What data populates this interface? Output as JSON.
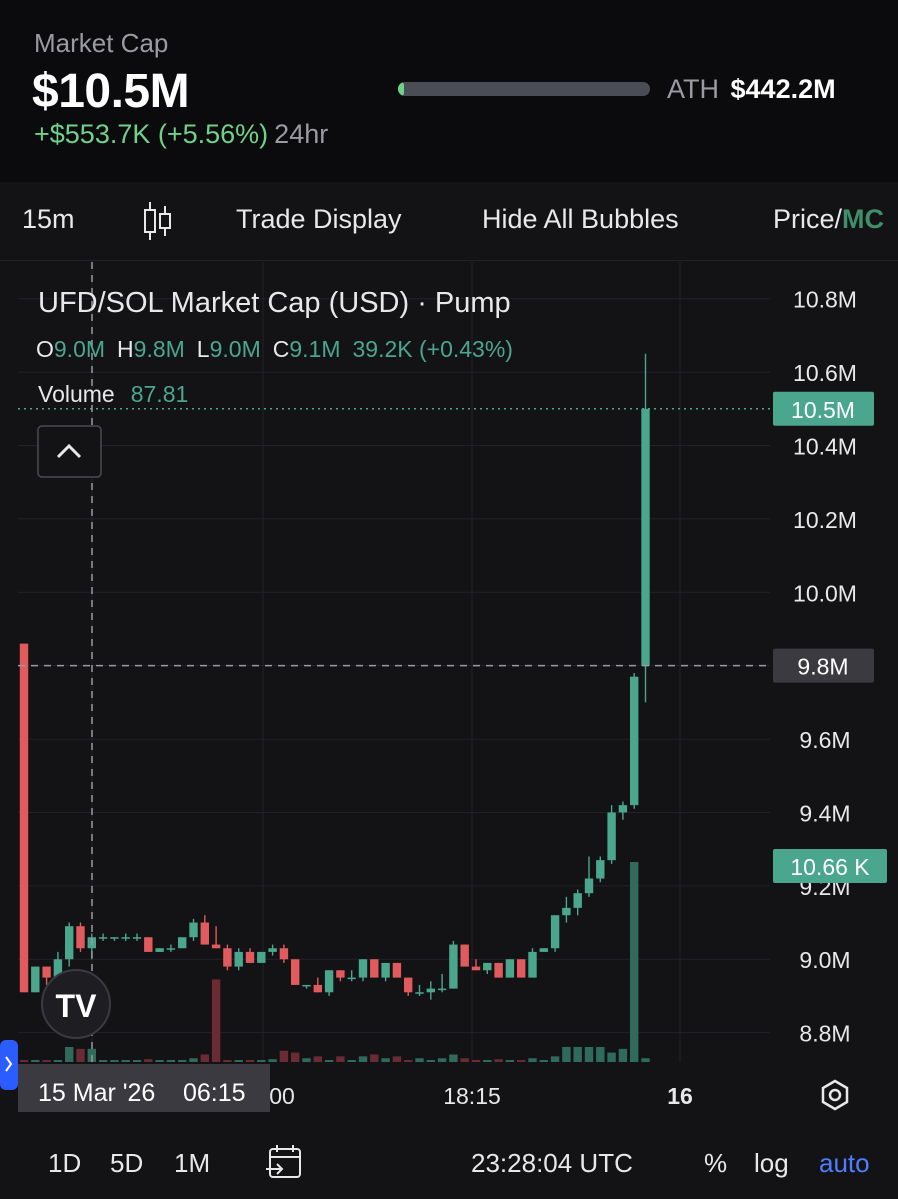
{
  "header": {
    "market_cap_label": "Market Cap",
    "market_cap_value": "$10.5M",
    "change_value": "+$553.7K (+5.56%)",
    "change_period": "24hr",
    "ath_label": "ATH",
    "ath_value": "$442.2M",
    "ath_progress": 0.024
  },
  "toolbar": {
    "interval": "15m",
    "candle_icon": "candlestick-icon",
    "trade_display": "Trade Display",
    "hide_bubbles": "Hide All Bubbles",
    "price_label": "Price/",
    "mc_label": "MC"
  },
  "legend": {
    "title": "UFD/SOL Market Cap (USD) · Pump",
    "o_label": "O",
    "o_value": "9.0M",
    "h_label": "H",
    "h_value": "9.8M",
    "l_label": "L",
    "l_value": "9.0M",
    "c_label": "C",
    "c_value": "9.1M",
    "change": "39.2K (+0.43%)",
    "volume_label": "Volume",
    "volume_value": "87.81"
  },
  "chart_data": {
    "type": "candlestick",
    "ylim": [
      8.72,
      10.9
    ],
    "y_ticks": [
      "10.8M",
      "10.6M",
      "10.4M",
      "10.2M",
      "10.0M",
      "9.8M",
      "9.6M",
      "9.4M",
      "9.2M",
      "9.0M",
      "8.8M"
    ],
    "y_tick_values": [
      10.8,
      10.6,
      10.4,
      10.2,
      10.0,
      9.8,
      9.6,
      9.4,
      9.2,
      9.0,
      8.8
    ],
    "x_ticks": [
      "00",
      "18:15",
      "16"
    ],
    "last_price_label": "10.5M",
    "last_price_value": 10.5,
    "crosshair_label": "9.8M",
    "crosshair_value": 9.8,
    "volume_badge": "10.66 K",
    "crosshair_date": "15 Mar '26",
    "crosshair_time": "06:15",
    "colors": {
      "up": "#4aa68c",
      "down": "#e05a5e",
      "up_vol": "#2f6b5b",
      "down_vol": "#6b2b33"
    },
    "candles": [
      {
        "o": 9.86,
        "h": 9.86,
        "l": 8.91,
        "c": 8.91,
        "v": 0.1
      },
      {
        "o": 8.91,
        "h": 8.98,
        "l": 8.91,
        "c": 8.98,
        "v": 0.1
      },
      {
        "o": 8.98,
        "h": 8.98,
        "l": 8.93,
        "c": 8.95,
        "v": 0.1
      },
      {
        "o": 8.95,
        "h": 9.02,
        "l": 8.92,
        "c": 9.0,
        "v": 0.1
      },
      {
        "o": 9.0,
        "h": 9.1,
        "l": 8.98,
        "c": 9.09,
        "v": 0.8
      },
      {
        "o": 9.09,
        "h": 9.1,
        "l": 9.02,
        "c": 9.03,
        "v": 0.7
      },
      {
        "o": 9.03,
        "h": 9.07,
        "l": 9.0,
        "c": 9.06,
        "v": 0.7
      },
      {
        "o": 9.06,
        "h": 9.07,
        "l": 9.05,
        "c": 9.06,
        "v": 0.1
      },
      {
        "o": 9.06,
        "h": 9.06,
        "l": 9.05,
        "c": 9.06,
        "v": 0.1
      },
      {
        "o": 9.06,
        "h": 9.07,
        "l": 9.05,
        "c": 9.06,
        "v": 0.1
      },
      {
        "o": 9.06,
        "h": 9.07,
        "l": 9.05,
        "c": 9.06,
        "v": 0.1
      },
      {
        "o": 9.06,
        "h": 9.06,
        "l": 9.02,
        "c": 9.02,
        "v": 0.15
      },
      {
        "o": 9.02,
        "h": 9.03,
        "l": 9.02,
        "c": 9.03,
        "v": 0.1
      },
      {
        "o": 9.03,
        "h": 9.04,
        "l": 9.02,
        "c": 9.03,
        "v": 0.1
      },
      {
        "o": 9.03,
        "h": 9.06,
        "l": 9.03,
        "c": 9.06,
        "v": 0.1
      },
      {
        "o": 9.06,
        "h": 9.11,
        "l": 9.05,
        "c": 9.1,
        "v": 0.2
      },
      {
        "o": 9.1,
        "h": 9.12,
        "l": 9.04,
        "c": 9.04,
        "v": 0.4
      },
      {
        "o": 9.04,
        "h": 9.09,
        "l": 9.03,
        "c": 9.03,
        "v": 4.4
      },
      {
        "o": 9.03,
        "h": 9.04,
        "l": 8.97,
        "c": 8.98,
        "v": 0.1
      },
      {
        "o": 8.98,
        "h": 9.03,
        "l": 8.97,
        "c": 9.02,
        "v": 0.1
      },
      {
        "o": 9.02,
        "h": 9.03,
        "l": 8.99,
        "c": 8.99,
        "v": 0.1
      },
      {
        "o": 8.99,
        "h": 9.02,
        "l": 8.99,
        "c": 9.02,
        "v": 0.1
      },
      {
        "o": 9.02,
        "h": 9.04,
        "l": 9.01,
        "c": 9.03,
        "v": 0.15
      },
      {
        "o": 9.03,
        "h": 9.04,
        "l": 8.99,
        "c": 9.0,
        "v": 0.6
      },
      {
        "o": 9.0,
        "h": 9.0,
        "l": 8.93,
        "c": 8.93,
        "v": 0.5
      },
      {
        "o": 8.93,
        "h": 8.93,
        "l": 8.92,
        "c": 8.93,
        "v": 0.2
      },
      {
        "o": 8.93,
        "h": 8.95,
        "l": 8.91,
        "c": 8.91,
        "v": 0.3
      },
      {
        "o": 8.91,
        "h": 8.97,
        "l": 8.9,
        "c": 8.97,
        "v": 0.1
      },
      {
        "o": 8.97,
        "h": 8.97,
        "l": 8.94,
        "c": 8.95,
        "v": 0.3
      },
      {
        "o": 8.95,
        "h": 8.97,
        "l": 8.94,
        "c": 8.95,
        "v": 0.1
      },
      {
        "o": 8.95,
        "h": 9.0,
        "l": 8.94,
        "c": 9.0,
        "v": 0.3
      },
      {
        "o": 9.0,
        "h": 9.0,
        "l": 8.95,
        "c": 8.95,
        "v": 0.4
      },
      {
        "o": 8.95,
        "h": 8.99,
        "l": 8.94,
        "c": 8.99,
        "v": 0.2
      },
      {
        "o": 8.99,
        "h": 8.99,
        "l": 8.95,
        "c": 8.95,
        "v": 0.3
      },
      {
        "o": 8.95,
        "h": 8.95,
        "l": 8.9,
        "c": 8.91,
        "v": 0.1
      },
      {
        "o": 8.91,
        "h": 8.93,
        "l": 8.9,
        "c": 8.91,
        "v": 0.2
      },
      {
        "o": 8.91,
        "h": 8.94,
        "l": 8.89,
        "c": 8.92,
        "v": 0.1
      },
      {
        "o": 8.92,
        "h": 8.96,
        "l": 8.91,
        "c": 8.92,
        "v": 0.2
      },
      {
        "o": 8.92,
        "h": 9.05,
        "l": 8.92,
        "c": 9.04,
        "v": 0.4
      },
      {
        "o": 9.04,
        "h": 9.04,
        "l": 8.98,
        "c": 8.98,
        "v": 0.2
      },
      {
        "o": 8.98,
        "h": 9.0,
        "l": 8.97,
        "c": 8.97,
        "v": 0.1
      },
      {
        "o": 8.97,
        "h": 8.99,
        "l": 8.96,
        "c": 8.99,
        "v": 0.1
      },
      {
        "o": 8.99,
        "h": 8.99,
        "l": 8.95,
        "c": 8.95,
        "v": 0.15
      },
      {
        "o": 8.95,
        "h": 9.0,
        "l": 8.95,
        "c": 9.0,
        "v": 0.1
      },
      {
        "o": 9.0,
        "h": 9.0,
        "l": 8.95,
        "c": 8.95,
        "v": 0.1
      },
      {
        "o": 8.95,
        "h": 9.03,
        "l": 8.95,
        "c": 9.02,
        "v": 0.2
      },
      {
        "o": 9.02,
        "h": 9.03,
        "l": 9.02,
        "c": 9.03,
        "v": 0.1
      },
      {
        "o": 9.03,
        "h": 9.12,
        "l": 9.02,
        "c": 9.12,
        "v": 0.3
      },
      {
        "o": 9.12,
        "h": 9.17,
        "l": 9.1,
        "c": 9.14,
        "v": 0.8
      },
      {
        "o": 9.14,
        "h": 9.19,
        "l": 9.12,
        "c": 9.18,
        "v": 0.8
      },
      {
        "o": 9.18,
        "h": 9.28,
        "l": 9.17,
        "c": 9.22,
        "v": 0.8
      },
      {
        "o": 9.22,
        "h": 9.28,
        "l": 9.21,
        "c": 9.27,
        "v": 0.8
      },
      {
        "o": 9.27,
        "h": 9.42,
        "l": 9.26,
        "c": 9.4,
        "v": 0.5
      },
      {
        "o": 9.4,
        "h": 9.43,
        "l": 9.38,
        "c": 9.42,
        "v": 0.7
      },
      {
        "o": 9.42,
        "h": 9.78,
        "l": 9.41,
        "c": 9.77,
        "v": 10.66
      },
      {
        "o": 9.8,
        "h": 10.65,
        "l": 9.7,
        "c": 10.5,
        "v": 0.2
      }
    ]
  },
  "bottom": {
    "ranges": [
      "1D",
      "5D",
      "1M"
    ],
    "calendar_icon": "calendar-goto-icon",
    "clock": "23:28:04 UTC",
    "percent": "%",
    "log": "log",
    "auto": "auto",
    "settings_icon": "gear-icon",
    "tv_logo": "tradingview-logo"
  }
}
